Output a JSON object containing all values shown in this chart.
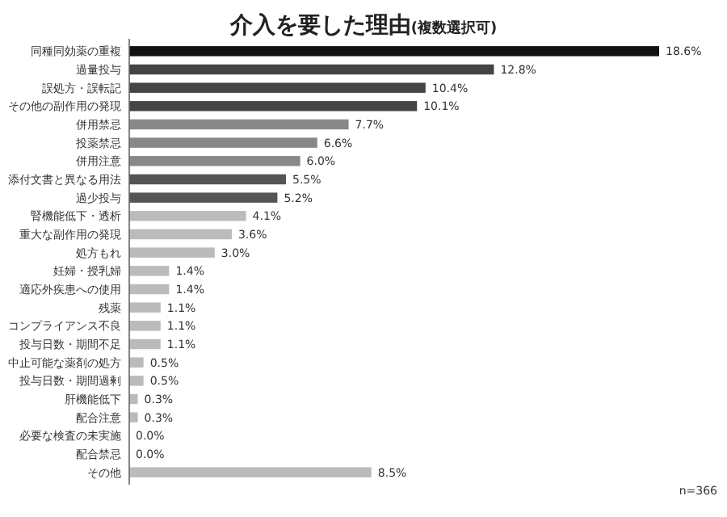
{
  "chart_data": {
    "type": "bar",
    "orientation": "horizontal",
    "title": "介入を要した理由",
    "subtitle": "(複数選択可)",
    "categories": [
      "同種同効薬の重複",
      "過量投与",
      "誤処方・誤転記",
      "その他の副作用の発現",
      "併用禁忌",
      "投薬禁忌",
      "併用注意",
      "添付文書と異なる用法",
      "過少投与",
      "腎機能低下・透析",
      "重大な副作用の発現",
      "処方もれ",
      "妊婦・授乳婦",
      "適応外疾患への使用",
      "残薬",
      "コンプライアンス不良",
      "投与日数・期間不足",
      "中止可能な薬剤の処方",
      "投与日数・期間過剰",
      "肝機能低下",
      "配合注意",
      "必要な検査の未実施",
      "配合禁忌",
      "その他"
    ],
    "values": [
      18.6,
      12.8,
      10.4,
      10.1,
      7.7,
      6.6,
      6.0,
      5.5,
      5.2,
      4.1,
      3.6,
      3.0,
      1.4,
      1.4,
      1.1,
      1.1,
      1.1,
      0.5,
      0.5,
      0.3,
      0.3,
      0.0,
      0.0,
      8.5
    ],
    "value_labels": [
      "18.6%",
      "12.8%",
      "10.4%",
      "10.1%",
      "7.7%",
      "6.6%",
      "6.0%",
      "5.5%",
      "5.2%",
      "4.1%",
      "3.6%",
      "3.0%",
      "1.4%",
      "1.4%",
      "1.1%",
      "1.1%",
      "1.1%",
      "0.5%",
      "0.5%",
      "0.3%",
      "0.3%",
      "0.0%",
      "0.0%",
      "8.5%"
    ],
    "colors": [
      "#111111",
      "#444444",
      "#444444",
      "#444444",
      "#888888",
      "#888888",
      "#888888",
      "#555555",
      "#555555",
      "#bbbbbb",
      "#bbbbbb",
      "#bbbbbb",
      "#bbbbbb",
      "#bbbbbb",
      "#bbbbbb",
      "#bbbbbb",
      "#bbbbbb",
      "#bbbbbb",
      "#bbbbbb",
      "#bbbbbb",
      "#bbbbbb",
      "#bbbbbb",
      "#bbbbbb",
      "#bbbbbb"
    ],
    "annotations": [
      "n=366"
    ]
  }
}
